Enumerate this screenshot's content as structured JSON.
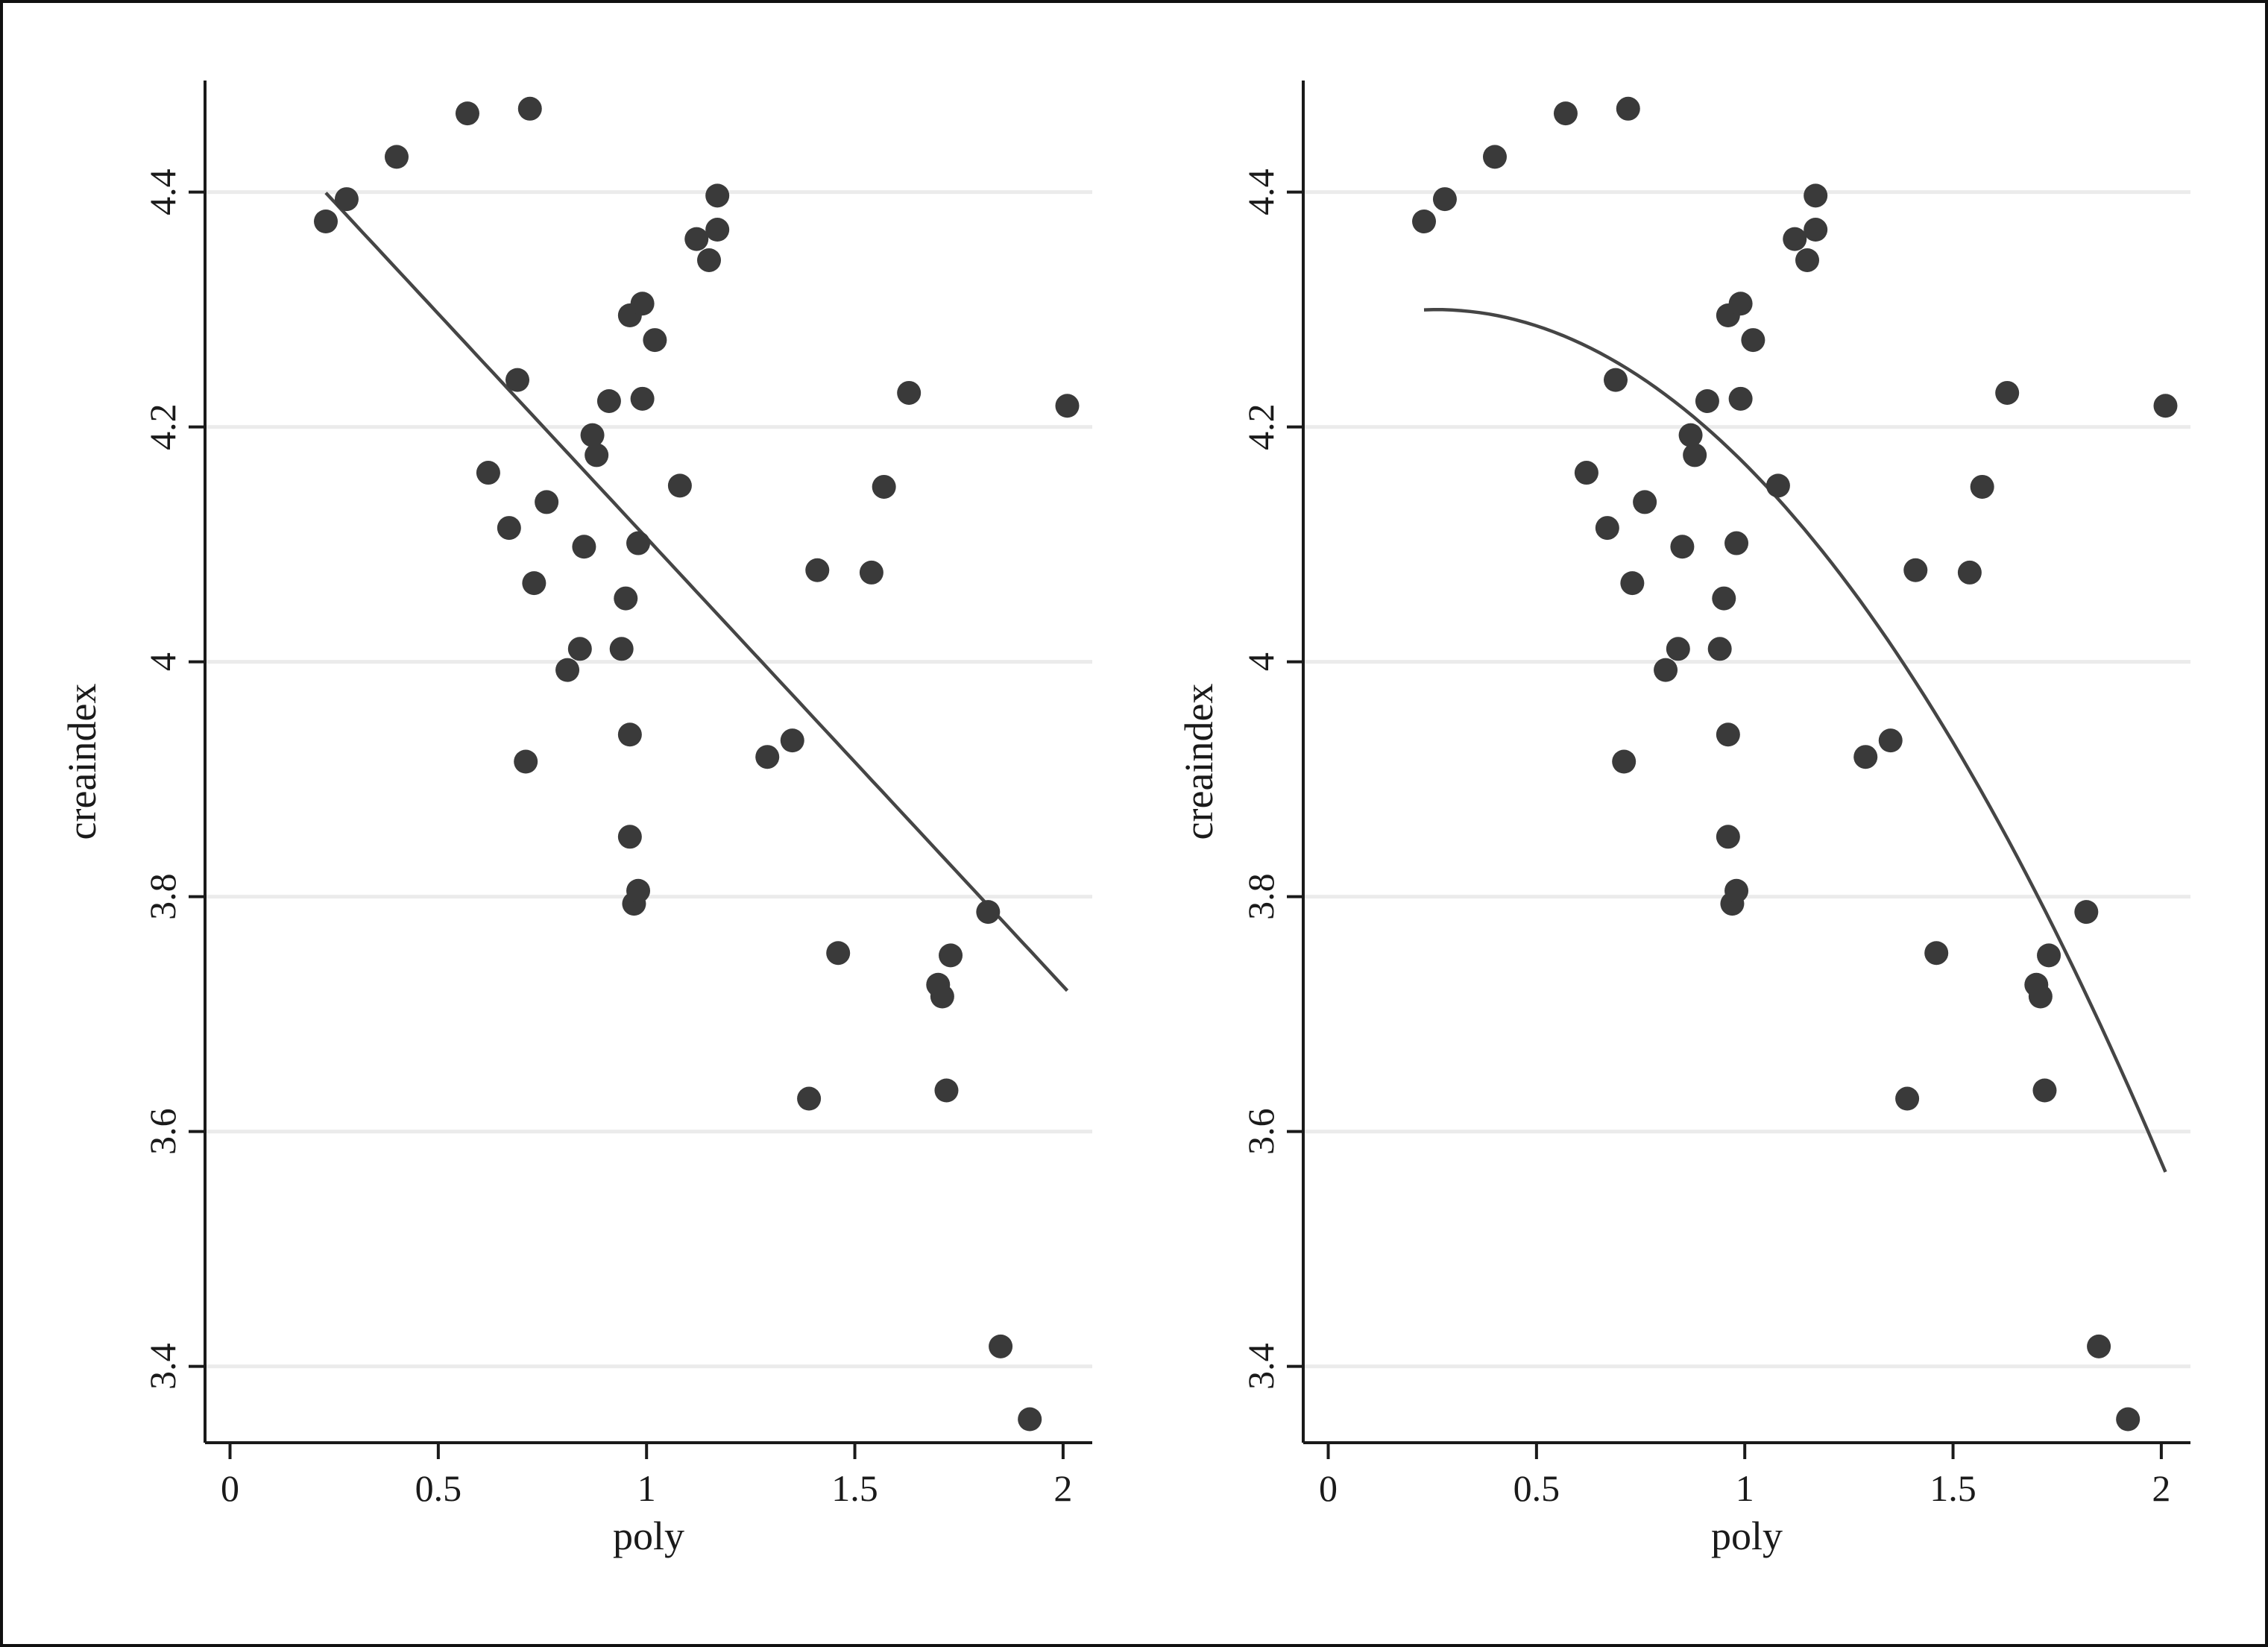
{
  "colors": {
    "background": "#ffffff",
    "frame": "#111111",
    "axis": "#1a1a1a",
    "grid": "#ebebeb",
    "marker": "#3a3a3a",
    "fit_line": "#454545"
  },
  "chart_data": [
    {
      "type": "scatter",
      "fit": "linear",
      "xlabel": "poly",
      "ylabel": "creaindex",
      "xlim": [
        -0.06,
        2.07
      ],
      "ylim": [
        3.335,
        4.495
      ],
      "x_ticks": [
        {
          "value": 0,
          "label": "0"
        },
        {
          "value": 0.5,
          "label": "0.5"
        },
        {
          "value": 1,
          "label": "1"
        },
        {
          "value": 1.5,
          "label": "1.5"
        },
        {
          "value": 2,
          "label": "2"
        }
      ],
      "y_ticks": [
        {
          "value": 3.4,
          "label": "3.4"
        },
        {
          "value": 3.6,
          "label": "3.6"
        },
        {
          "value": 3.8,
          "label": "3.8"
        },
        {
          "value": 4.0,
          "label": "4"
        },
        {
          "value": 4.2,
          "label": "4.2"
        },
        {
          "value": 4.4,
          "label": "4.4"
        }
      ],
      "grid": true,
      "points": [
        [
          0.23,
          4.375
        ],
        [
          0.28,
          4.394
        ],
        [
          0.4,
          4.43
        ],
        [
          0.57,
          4.467
        ],
        [
          0.72,
          4.471
        ],
        [
          0.69,
          4.24
        ],
        [
          0.62,
          4.161
        ],
        [
          0.67,
          4.114
        ],
        [
          0.76,
          4.136
        ],
        [
          0.73,
          4.067
        ],
        [
          0.71,
          3.915
        ],
        [
          0.81,
          3.993
        ],
        [
          0.84,
          4.011
        ],
        [
          0.85,
          4.098
        ],
        [
          0.87,
          4.193
        ],
        [
          0.88,
          4.176
        ],
        [
          0.91,
          4.222
        ],
        [
          0.94,
          4.011
        ],
        [
          0.95,
          4.054
        ],
        [
          0.96,
          4.295
        ],
        [
          0.96,
          3.938
        ],
        [
          0.96,
          3.851
        ],
        [
          0.97,
          3.794
        ],
        [
          0.98,
          3.805
        ],
        [
          0.98,
          4.101
        ],
        [
          0.99,
          4.305
        ],
        [
          0.99,
          4.224
        ],
        [
          1.02,
          4.274
        ],
        [
          1.08,
          4.15
        ],
        [
          1.12,
          4.36
        ],
        [
          1.15,
          4.342
        ],
        [
          1.17,
          4.397
        ],
        [
          1.17,
          4.368
        ],
        [
          1.29,
          3.919
        ],
        [
          1.35,
          3.933
        ],
        [
          1.39,
          3.628
        ],
        [
          1.41,
          4.078
        ],
        [
          1.46,
          3.752
        ],
        [
          1.54,
          4.076
        ],
        [
          1.57,
          4.149
        ],
        [
          1.63,
          4.229
        ],
        [
          1.7,
          3.725
        ],
        [
          1.71,
          3.715
        ],
        [
          1.72,
          3.635
        ],
        [
          1.73,
          3.75
        ],
        [
          1.82,
          3.787
        ],
        [
          1.85,
          3.417
        ],
        [
          1.92,
          3.355
        ],
        [
          2.01,
          4.218
        ]
      ],
      "fit_params": {
        "x_start": 0.23,
        "x_end": 2.01,
        "intercept": 4.4872,
        "slope": -0.3817
      }
    },
    {
      "type": "scatter",
      "fit": "quadratic",
      "xlabel": "poly",
      "ylabel": "creaindex",
      "xlim": [
        -0.06,
        2.07
      ],
      "ylim": [
        3.335,
        4.495
      ],
      "x_ticks": [
        {
          "value": 0,
          "label": "0"
        },
        {
          "value": 0.5,
          "label": "0.5"
        },
        {
          "value": 1,
          "label": "1"
        },
        {
          "value": 1.5,
          "label": "1.5"
        },
        {
          "value": 2,
          "label": "2"
        }
      ],
      "y_ticks": [
        {
          "value": 3.4,
          "label": "3.4"
        },
        {
          "value": 3.6,
          "label": "3.6"
        },
        {
          "value": 3.8,
          "label": "3.8"
        },
        {
          "value": 4.0,
          "label": "4"
        },
        {
          "value": 4.2,
          "label": "4.2"
        },
        {
          "value": 4.4,
          "label": "4.4"
        }
      ],
      "grid": true,
      "points": [
        [
          0.23,
          4.375
        ],
        [
          0.28,
          4.394
        ],
        [
          0.4,
          4.43
        ],
        [
          0.57,
          4.467
        ],
        [
          0.72,
          4.471
        ],
        [
          0.69,
          4.24
        ],
        [
          0.62,
          4.161
        ],
        [
          0.67,
          4.114
        ],
        [
          0.76,
          4.136
        ],
        [
          0.73,
          4.067
        ],
        [
          0.71,
          3.915
        ],
        [
          0.81,
          3.993
        ],
        [
          0.84,
          4.011
        ],
        [
          0.85,
          4.098
        ],
        [
          0.87,
          4.193
        ],
        [
          0.88,
          4.176
        ],
        [
          0.91,
          4.222
        ],
        [
          0.94,
          4.011
        ],
        [
          0.95,
          4.054
        ],
        [
          0.96,
          4.295
        ],
        [
          0.96,
          3.938
        ],
        [
          0.96,
          3.851
        ],
        [
          0.97,
          3.794
        ],
        [
          0.98,
          3.805
        ],
        [
          0.98,
          4.101
        ],
        [
          0.99,
          4.305
        ],
        [
          0.99,
          4.224
        ],
        [
          1.02,
          4.274
        ],
        [
          1.08,
          4.15
        ],
        [
          1.12,
          4.36
        ],
        [
          1.15,
          4.342
        ],
        [
          1.17,
          4.397
        ],
        [
          1.17,
          4.368
        ],
        [
          1.29,
          3.919
        ],
        [
          1.35,
          3.933
        ],
        [
          1.39,
          3.628
        ],
        [
          1.41,
          4.078
        ],
        [
          1.46,
          3.752
        ],
        [
          1.54,
          4.076
        ],
        [
          1.57,
          4.149
        ],
        [
          1.63,
          4.229
        ],
        [
          1.7,
          3.725
        ],
        [
          1.71,
          3.715
        ],
        [
          1.72,
          3.635
        ],
        [
          1.73,
          3.75
        ],
        [
          1.82,
          3.787
        ],
        [
          1.85,
          3.417
        ],
        [
          1.92,
          3.355
        ],
        [
          2.01,
          4.218
        ]
      ],
      "fit_params": {
        "x_start": 0.23,
        "x_end": 2.01,
        "a": 4.2837,
        "b": 0.1247,
        "c": -0.2398
      }
    }
  ]
}
